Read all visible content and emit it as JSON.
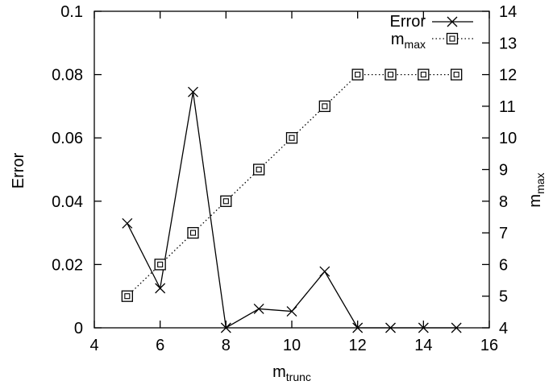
{
  "chart_data": {
    "type": "line",
    "xlabel": {
      "base": "m",
      "sub": "trunc"
    },
    "ylabel": "Error",
    "y2label": {
      "base": "m",
      "sub": "max"
    },
    "xlim": [
      4,
      16
    ],
    "ylim": [
      0,
      0.1
    ],
    "y2lim": [
      4,
      14
    ],
    "xticks": [
      4,
      6,
      8,
      10,
      12,
      14,
      16
    ],
    "yticks": [
      "0",
      "0.02",
      "0.04",
      "0.06",
      "0.08",
      "0.1"
    ],
    "y2ticks": [
      4,
      5,
      6,
      7,
      8,
      9,
      10,
      11,
      12,
      13,
      14
    ],
    "grid": false,
    "legend_position": "top-right",
    "series": [
      {
        "name": "Error",
        "axis": "left",
        "style": "solid",
        "marker": "x",
        "x": [
          5,
          6,
          7,
          8,
          9,
          10,
          11,
          12,
          13,
          14,
          15
        ],
        "values": [
          0.033,
          0.0125,
          0.0745,
          0.0,
          0.006,
          0.0052,
          0.0178,
          0.0,
          0.0,
          0.0,
          0.0
        ]
      },
      {
        "name": {
          "base": "m",
          "sub": "max"
        },
        "axis": "right",
        "style": "dotted",
        "marker": "boxed-square",
        "x": [
          5,
          6,
          7,
          8,
          9,
          10,
          11,
          12,
          13,
          14,
          15
        ],
        "values": [
          5,
          6,
          7,
          8,
          9,
          10,
          11,
          12,
          12,
          12,
          12
        ]
      }
    ]
  }
}
